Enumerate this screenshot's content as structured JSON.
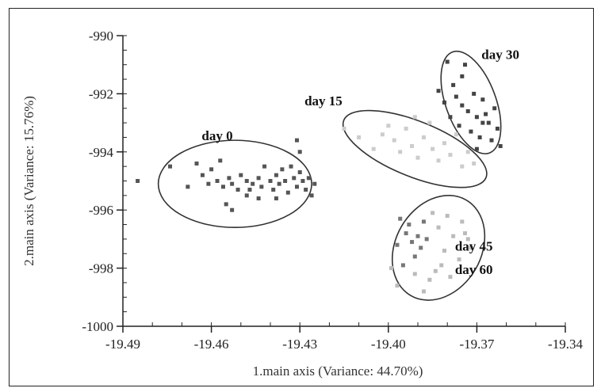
{
  "chart_data": {
    "type": "scatter",
    "xlabel": "1.main axis (Variance: 44.70%)",
    "ylabel": "2.main axis (Variance: 15.76%)",
    "xlim": [
      -19.49,
      -19.34
    ],
    "ylim": [
      -1000,
      -990
    ],
    "xticks": [
      "-19.49",
      "-19.46",
      "-19.43",
      "-19.40",
      "-19.37",
      "-19.34"
    ],
    "yticks": [
      "-990",
      "-992",
      "-994",
      "-996",
      "-998",
      "-1000"
    ],
    "groups": [
      {
        "label": "day 0",
        "color": "#555555",
        "points": [
          [
            -19.485,
            -995.0
          ],
          [
            -19.474,
            -994.5
          ],
          [
            -19.468,
            -995.2
          ],
          [
            -19.465,
            -994.4
          ],
          [
            -19.463,
            -994.8
          ],
          [
            -19.461,
            -995.1
          ],
          [
            -19.46,
            -994.6
          ],
          [
            -19.458,
            -995.0
          ],
          [
            -19.457,
            -994.3
          ],
          [
            -19.456,
            -995.2
          ],
          [
            -19.454,
            -994.9
          ],
          [
            -19.453,
            -995.1
          ],
          [
            -19.451,
            -995.3
          ],
          [
            -19.45,
            -994.8
          ],
          [
            -19.448,
            -995.0
          ],
          [
            -19.447,
            -995.3
          ],
          [
            -19.446,
            -995.1
          ],
          [
            -19.444,
            -994.9
          ],
          [
            -19.443,
            -995.2
          ],
          [
            -19.442,
            -994.5
          ],
          [
            -19.44,
            -995.0
          ],
          [
            -19.439,
            -995.3
          ],
          [
            -19.438,
            -994.8
          ],
          [
            -19.437,
            -995.1
          ],
          [
            -19.436,
            -994.6
          ],
          [
            -19.435,
            -995.0
          ],
          [
            -19.434,
            -995.4
          ],
          [
            -19.433,
            -994.5
          ],
          [
            -19.432,
            -994.9
          ],
          [
            -19.431,
            -995.2
          ],
          [
            -19.43,
            -994.7
          ],
          [
            -19.429,
            -995.0
          ],
          [
            -19.428,
            -995.3
          ],
          [
            -19.427,
            -994.9
          ],
          [
            -19.426,
            -995.5
          ],
          [
            -19.425,
            -995.1
          ],
          [
            -19.453,
            -996.0
          ],
          [
            -19.455,
            -995.8
          ],
          [
            -19.438,
            -995.6
          ],
          [
            -19.444,
            -995.6
          ],
          [
            -19.43,
            -994.0
          ],
          [
            -19.431,
            -993.6
          ],
          [
            -19.448,
            -995.5
          ]
        ]
      },
      {
        "label": "day 15",
        "color": "#cccccc",
        "points": [
          [
            -19.415,
            -993.2
          ],
          [
            -19.41,
            -993.5
          ],
          [
            -19.405,
            -993.9
          ],
          [
            -19.402,
            -993.4
          ],
          [
            -19.398,
            -993.6
          ],
          [
            -19.396,
            -994.0
          ],
          [
            -19.394,
            -993.2
          ],
          [
            -19.392,
            -993.8
          ],
          [
            -19.39,
            -994.2
          ],
          [
            -19.388,
            -993.5
          ],
          [
            -19.386,
            -993.0
          ],
          [
            -19.385,
            -993.9
          ],
          [
            -19.383,
            -994.3
          ],
          [
            -19.381,
            -993.7
          ],
          [
            -19.379,
            -994.1
          ],
          [
            -19.377,
            -993.4
          ],
          [
            -19.375,
            -994.5
          ],
          [
            -19.373,
            -994.0
          ],
          [
            -19.371,
            -994.4
          ],
          [
            -19.4,
            -993.1
          ],
          [
            -19.391,
            -992.8
          ]
        ]
      },
      {
        "label": "day 30",
        "color": "#444444",
        "points": [
          [
            -19.383,
            -991.9
          ],
          [
            -19.381,
            -992.3
          ],
          [
            -19.38,
            -990.9
          ],
          [
            -19.379,
            -992.8
          ],
          [
            -19.378,
            -991.7
          ],
          [
            -19.377,
            -992.1
          ],
          [
            -19.376,
            -993.1
          ],
          [
            -19.375,
            -992.4
          ],
          [
            -19.374,
            -991.0
          ],
          [
            -19.373,
            -992.6
          ],
          [
            -19.372,
            -993.3
          ],
          [
            -19.371,
            -992.0
          ],
          [
            -19.37,
            -992.8
          ],
          [
            -19.369,
            -993.5
          ],
          [
            -19.368,
            -992.2
          ],
          [
            -19.367,
            -992.7
          ],
          [
            -19.366,
            -993.0
          ],
          [
            -19.365,
            -993.6
          ],
          [
            -19.364,
            -992.5
          ],
          [
            -19.363,
            -993.2
          ],
          [
            -19.362,
            -993.8
          ],
          [
            -19.37,
            -993.9
          ],
          [
            -19.375,
            -991.4
          ],
          [
            -19.368,
            -993.0
          ]
        ]
      },
      {
        "label": "day 45",
        "color": "#777777",
        "points": [
          [
            -19.396,
            -996.3
          ],
          [
            -19.394,
            -996.8
          ],
          [
            -19.392,
            -997.1
          ],
          [
            -19.393,
            -996.5
          ],
          [
            -19.39,
            -996.9
          ],
          [
            -19.389,
            -997.3
          ],
          [
            -19.391,
            -997.6
          ],
          [
            -19.388,
            -996.4
          ],
          [
            -19.395,
            -997.9
          ],
          [
            -19.397,
            -997.2
          ],
          [
            -19.387,
            -997.0
          ]
        ]
      },
      {
        "label": "day 60",
        "color": "#bbbbbb",
        "points": [
          [
            -19.385,
            -996.1
          ],
          [
            -19.383,
            -996.6
          ],
          [
            -19.381,
            -997.4
          ],
          [
            -19.38,
            -996.2
          ],
          [
            -19.378,
            -996.9
          ],
          [
            -19.376,
            -997.7
          ],
          [
            -19.375,
            -996.4
          ],
          [
            -19.373,
            -997.0
          ],
          [
            -19.384,
            -998.1
          ],
          [
            -19.382,
            -997.9
          ],
          [
            -19.386,
            -998.4
          ],
          [
            -19.379,
            -998.3
          ],
          [
            -19.399,
            -998.0
          ],
          [
            -19.397,
            -998.6
          ],
          [
            -19.391,
            -998.2
          ],
          [
            -19.388,
            -998.8
          ],
          [
            -19.374,
            -996.8
          ],
          [
            -19.372,
            -997.3
          ]
        ]
      }
    ],
    "ellipses": [
      {
        "cx": -19.452,
        "cy": -995.1,
        "rx": 0.026,
        "ry": 1.5,
        "angle": 0
      },
      {
        "cx": -19.391,
        "cy": -993.9,
        "rx": 0.026,
        "ry": 0.95,
        "angle": 22
      },
      {
        "cx": -19.372,
        "cy": -992.3,
        "rx": 0.0085,
        "ry": 1.85,
        "angle": -20
      },
      {
        "cx": -19.383,
        "cy": -997.3,
        "rx": 0.0145,
        "ry": 1.9,
        "angle": 30
      }
    ],
    "annotations": [
      {
        "text": "day 0",
        "x": -19.458,
        "y": -993.6
      },
      {
        "text": "day 15",
        "x": -19.422,
        "y": -992.4
      },
      {
        "text": "day 30",
        "x": -19.362,
        "y": -990.8
      },
      {
        "text": "day 45",
        "x": -19.371,
        "y": -997.4
      },
      {
        "text": "day 60",
        "x": -19.371,
        "y": -998.2
      }
    ],
    "grid": false,
    "legend": "none"
  }
}
